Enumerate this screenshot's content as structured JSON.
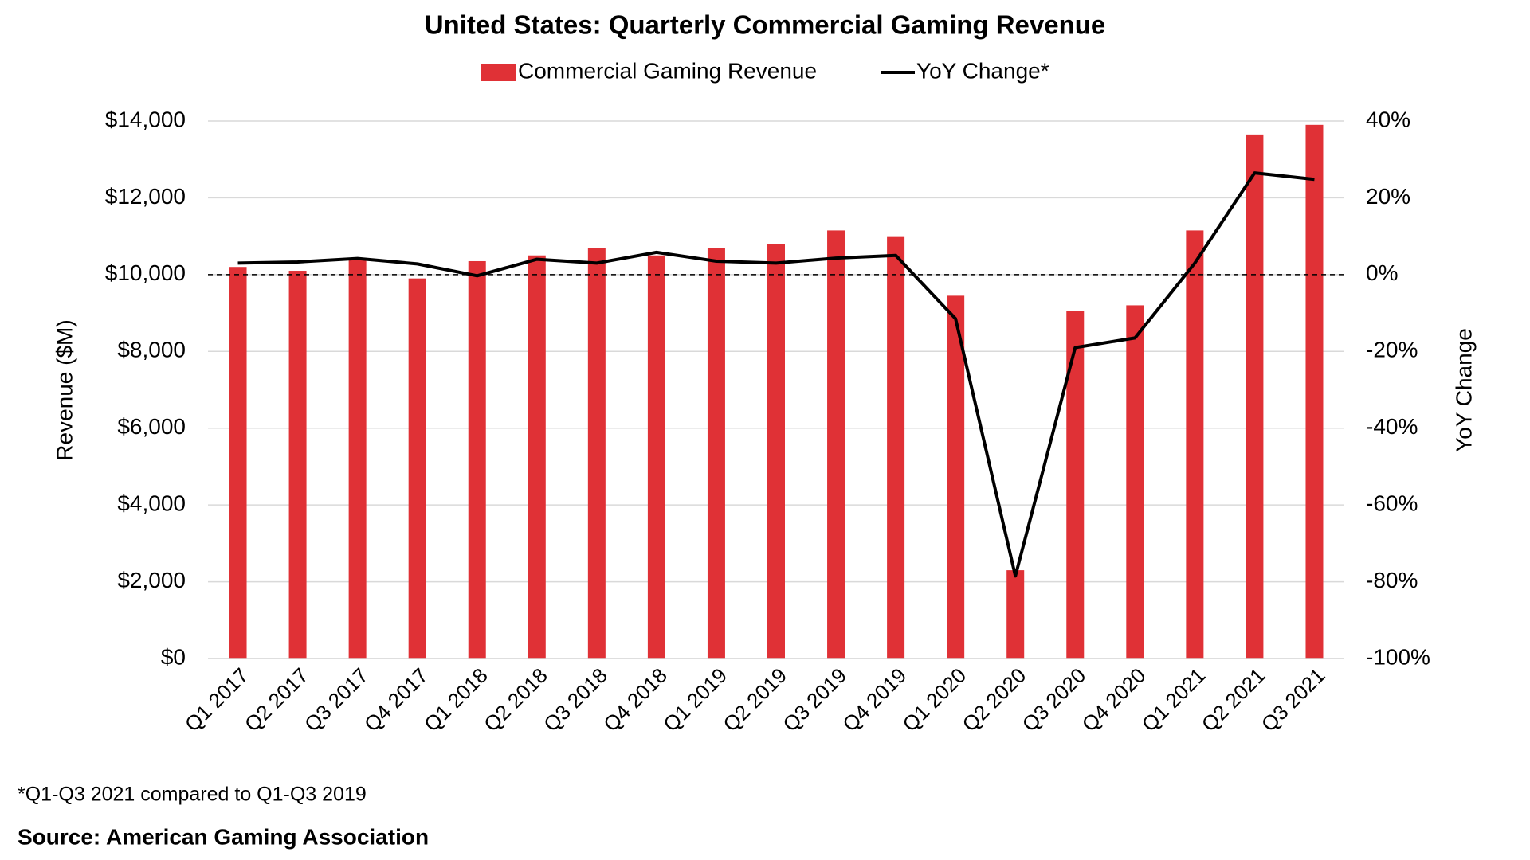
{
  "chart_data": {
    "type": "bar_line",
    "title": "United States: Quarterly Commercial Gaming Revenue",
    "y_label": "Revenue ($M)",
    "y2_label": "YoY Change",
    "footnote": "*Q1-Q3 2021 compared to Q1-Q3 2019",
    "source": "Source: American Gaming Association",
    "categories": [
      "Q1 2017",
      "Q2 2017",
      "Q3 2017",
      "Q4 2017",
      "Q1 2018",
      "Q2 2018",
      "Q3 2018",
      "Q4 2018",
      "Q1 2019",
      "Q2 2019",
      "Q3 2019",
      "Q4 2019",
      "Q1 2020",
      "Q2 2020",
      "Q3 2020",
      "Q4 2020",
      "Q1 2021",
      "Q2 2021",
      "Q3 2021"
    ],
    "series": [
      {
        "name": "Commercial Gaming Revenue",
        "type": "bar",
        "color": "#e03136",
        "values": [
          10200,
          10100,
          10400,
          9900,
          10350,
          10500,
          10700,
          10500,
          10700,
          10800,
          11150,
          11000,
          9450,
          2300,
          9050,
          9200,
          11150,
          13650,
          13900
        ]
      },
      {
        "name": "YoY Change*",
        "type": "line",
        "axis": "y2",
        "color": "#000000",
        "values": [
          3,
          3.3,
          4.2,
          2.8,
          -0.3,
          4,
          3,
          5.8,
          3.5,
          3,
          4.3,
          5,
          -11.5,
          -78.5,
          -19,
          -16.5,
          3,
          26.5,
          24.8
        ]
      }
    ],
    "ylim": [
      0,
      14000
    ],
    "yticks": [
      {
        "value": 0,
        "label": "$0"
      },
      {
        "value": 2000,
        "label": "$2,000"
      },
      {
        "value": 4000,
        "label": "$4,000"
      },
      {
        "value": 6000,
        "label": "$6,000"
      },
      {
        "value": 8000,
        "label": "$8,000"
      },
      {
        "value": 10000,
        "label": "$10,000"
      },
      {
        "value": 12000,
        "label": "$12,000"
      },
      {
        "value": 14000,
        "label": "$14,000"
      }
    ],
    "y2lim": [
      -100,
      40
    ],
    "y2ticks": [
      {
        "value": -100,
        "label": "-100%"
      },
      {
        "value": -80,
        "label": "-80%"
      },
      {
        "value": -60,
        "label": "-60%"
      },
      {
        "value": -40,
        "label": "-40%"
      },
      {
        "value": -20,
        "label": "-20%"
      },
      {
        "value": 0,
        "label": "0%"
      },
      {
        "value": 20,
        "label": "20%"
      },
      {
        "value": 40,
        "label": "40%"
      }
    ],
    "y2_reference_line": 0,
    "grid": true
  }
}
